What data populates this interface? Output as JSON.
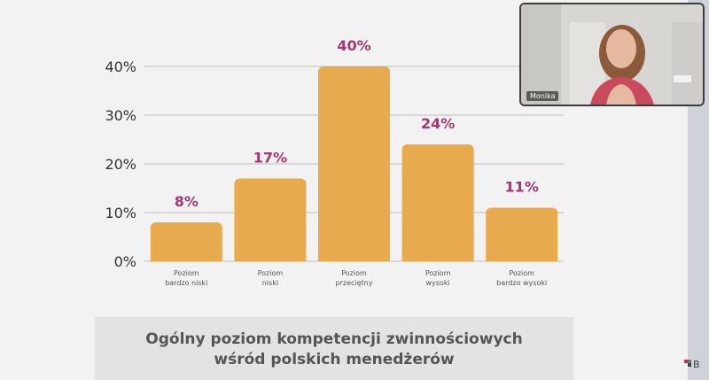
{
  "chart_data": {
    "type": "bar",
    "title": "Ogólny poziom kompetencji zwinnościowych wśród polskich menedżerów",
    "categories": [
      [
        "Poziom",
        "bardzo niski"
      ],
      [
        "Poziom",
        "niski"
      ],
      [
        "Poziom",
        "przeciętny"
      ],
      [
        "Poziom",
        "wysoki"
      ],
      [
        "Poziom",
        "bardzo wysoki"
      ]
    ],
    "values": [
      8,
      17,
      40,
      24,
      11
    ],
    "value_labels": [
      "8%",
      "17%",
      "40%",
      "24%",
      "11%"
    ],
    "ylim": [
      0,
      40
    ],
    "yticks": [
      0,
      10,
      20,
      30,
      40
    ],
    "ytick_labels": [
      "0%",
      "10%",
      "20%",
      "30%",
      "40%"
    ],
    "grid": true,
    "bar_color": "#e8aa4e",
    "value_label_color": "#a8366e"
  },
  "caption": {
    "line1": "Ogólny poziom kompetencji zwinnościowych",
    "line2": "wśród polskich menedżerów"
  },
  "webcam": {
    "participant_name": "Monika",
    "icon": "participant-video"
  },
  "brand": {
    "icon": "brand-logo-icon"
  }
}
